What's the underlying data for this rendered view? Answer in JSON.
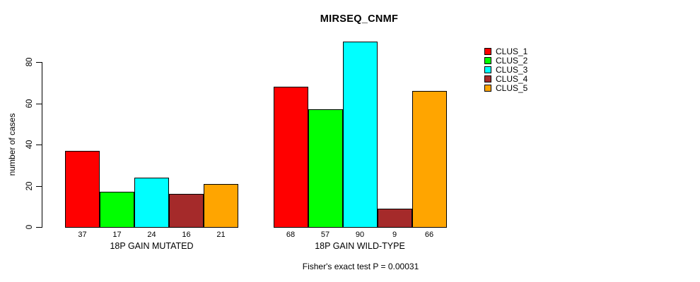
{
  "chart_data": {
    "type": "bar",
    "title": "MIRSEQ_CNMF",
    "ylabel": "number of cases",
    "xlabel": "",
    "yticks": [
      0,
      20,
      40,
      60,
      80
    ],
    "ylim": [
      0,
      92
    ],
    "grid": false,
    "legend_position": "right-inside",
    "categories": [
      "18P GAIN MUTATED",
      "18P GAIN WILD-TYPE"
    ],
    "series": [
      {
        "name": "CLUS_1",
        "color": "#ff0000",
        "values": [
          37,
          68
        ]
      },
      {
        "name": "CLUS_2",
        "color": "#00ff00",
        "values": [
          17,
          57
        ]
      },
      {
        "name": "CLUS_3",
        "color": "#00ffff",
        "values": [
          24,
          90
        ]
      },
      {
        "name": "CLUS_4",
        "color": "#a52a2a",
        "values": [
          16,
          9
        ]
      },
      {
        "name": "CLUS_5",
        "color": "#ffa500",
        "values": [
          21,
          66
        ]
      }
    ],
    "bar_value_labels_shown": true,
    "footnote": "Fisher's exact test P = 0.00031",
    "axis_color": "#000000",
    "text_color": "#000000",
    "background_color": "#ffffff"
  }
}
